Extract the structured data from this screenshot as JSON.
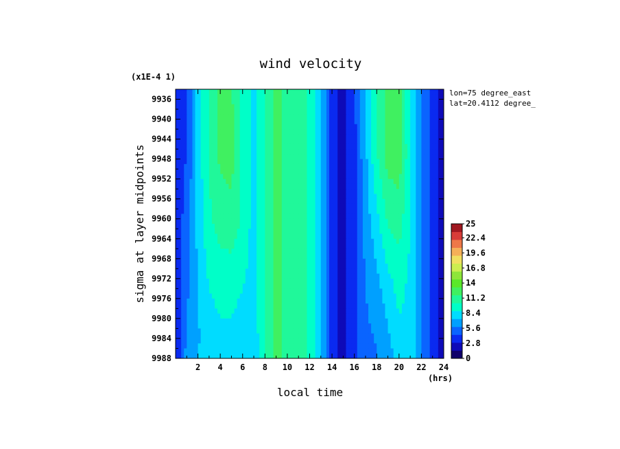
{
  "chart_data": {
    "type": "heatmap",
    "title": "wind velocity",
    "xlabel": "local time",
    "x_unit": "(hrs)",
    "ylabel": "sigma at layer midpoints",
    "y_scale_note": "(x1E-4 1)",
    "annotations": [
      "lon=75 degree_east",
      "lat=20.4112 degree_"
    ],
    "xlim": [
      0,
      24
    ],
    "ylim": [
      9934,
      9988
    ],
    "y_inverted": true,
    "x_ticks": [
      "2",
      "4",
      "6",
      "8",
      "10",
      "12",
      "14",
      "16",
      "18",
      "20",
      "22",
      "24"
    ],
    "y_ticks": [
      "9936",
      "9940",
      "9944",
      "9948",
      "9952",
      "9956",
      "9960",
      "9964",
      "9968",
      "9972",
      "9976",
      "9980",
      "9984",
      "9988"
    ],
    "x": [
      0,
      1,
      2,
      3,
      4,
      5,
      6,
      7,
      8,
      9,
      10,
      11,
      12,
      13,
      14,
      15,
      16,
      17,
      18,
      19,
      20,
      21,
      22,
      23,
      24
    ],
    "y": [
      9936,
      9948,
      9960,
      9972,
      9984,
      9988
    ],
    "z": [
      [
        3.5,
        4.5,
        8.0,
        10.5,
        12.3,
        12.0,
        10.0,
        8.2,
        10.5,
        12.0,
        11.5,
        11.0,
        10.0,
        7.5,
        3.5,
        2.5,
        4.0,
        7.5,
        10.5,
        12.5,
        12.3,
        9.0,
        6.0,
        3.5,
        2.5
      ],
      [
        3.5,
        4.5,
        8.0,
        10.5,
        12.0,
        12.3,
        10.0,
        8.2,
        10.5,
        12.0,
        11.5,
        11.0,
        10.0,
        7.5,
        3.5,
        2.5,
        4.0,
        7.0,
        10.0,
        12.3,
        12.5,
        9.0,
        6.0,
        3.5,
        2.5
      ],
      [
        3.5,
        5.0,
        7.8,
        10.0,
        11.0,
        11.3,
        10.0,
        8.2,
        10.5,
        12.0,
        11.5,
        11.0,
        10.0,
        7.5,
        3.5,
        2.5,
        4.0,
        6.5,
        8.5,
        10.5,
        11.0,
        8.8,
        6.0,
        3.5,
        2.5
      ],
      [
        3.5,
        5.5,
        7.5,
        9.0,
        9.5,
        9.5,
        9.0,
        8.2,
        10.5,
        12.0,
        11.5,
        11.0,
        10.0,
        7.5,
        3.5,
        2.5,
        4.0,
        6.0,
        7.0,
        8.5,
        9.5,
        8.5,
        6.0,
        3.5,
        2.5
      ],
      [
        3.0,
        6.0,
        7.2,
        8.0,
        8.5,
        8.5,
        8.0,
        7.8,
        10.5,
        12.0,
        11.5,
        11.0,
        10.0,
        7.5,
        3.5,
        2.5,
        4.0,
        5.5,
        6.0,
        7.0,
        8.5,
        8.3,
        6.0,
        3.5,
        2.5
      ],
      [
        3.0,
        6.5,
        7.5,
        7.8,
        8.0,
        8.2,
        7.8,
        7.6,
        10.5,
        12.0,
        11.5,
        11.0,
        10.0,
        7.5,
        3.5,
        2.5,
        4.0,
        5.5,
        5.8,
        6.5,
        8.0,
        8.2,
        6.0,
        3.5,
        2.5
      ]
    ],
    "colorbar": {
      "min": 0,
      "max": 25,
      "ticks": [
        "25",
        "22.4",
        "19.6",
        "16.8",
        "14",
        "11.2",
        "8.4",
        "5.6",
        "2.8",
        "0"
      ],
      "colors": [
        "#10006a",
        "#0e0ab8",
        "#0a2af0",
        "#0a64ff",
        "#00a0ff",
        "#00dcff",
        "#00ffc8",
        "#20f89a",
        "#40f060",
        "#5ae82a",
        "#8ee63a",
        "#ccee50",
        "#f0e060",
        "#f5b058",
        "#ee7848",
        "#d83c38",
        "#a01820"
      ]
    }
  }
}
